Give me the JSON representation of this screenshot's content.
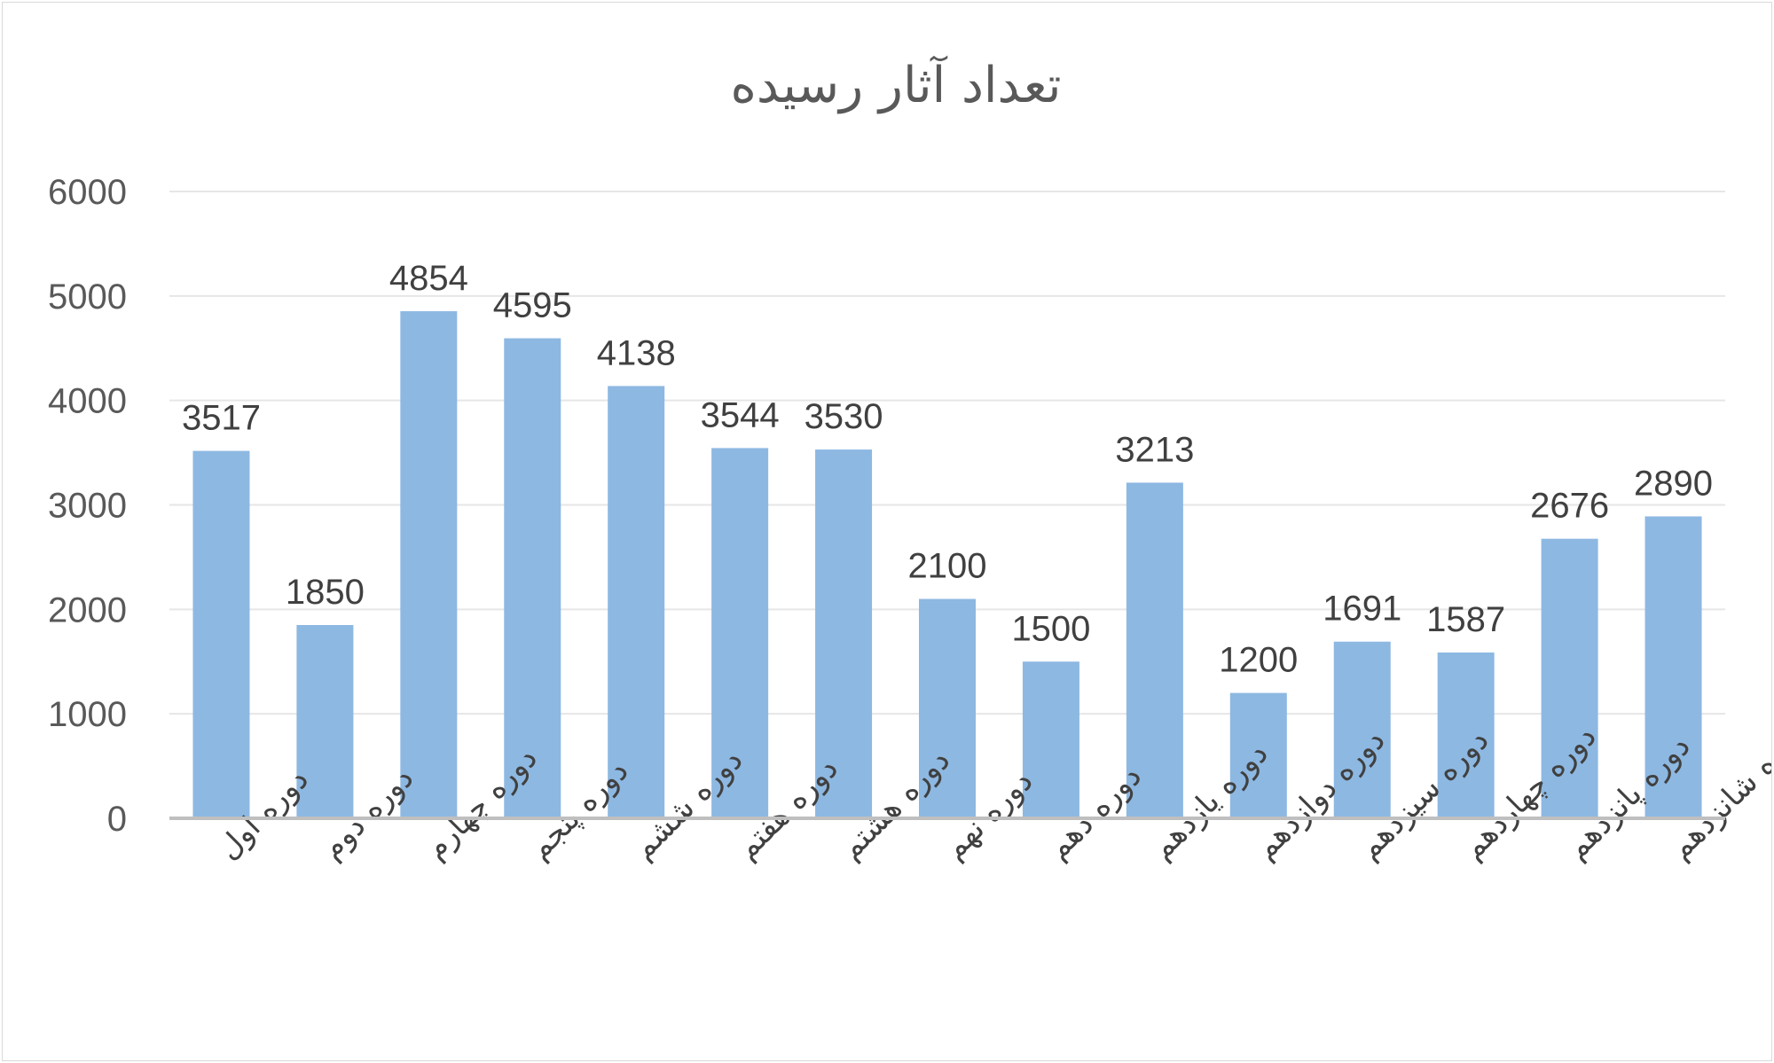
{
  "chart_data": {
    "type": "bar",
    "title": "تعداد آثار رسیده",
    "xlabel": "",
    "ylabel": "",
    "categories": [
      "دوره اول",
      "دوره دوم",
      "دوره چهارم",
      "دوره پنجم",
      "دوره ششم",
      "دوره هفتم",
      "دوره هشتم",
      "دوره نهم",
      "دوره دهم",
      "دوره یازدهم",
      "دوره دوازدهم",
      "دوره سیزدهم",
      "دوره چهاردهم",
      "دوره پانزدهم",
      "دوره شانزدهم"
    ],
    "values": [
      3517,
      1850,
      4854,
      4595,
      4138,
      3544,
      3530,
      2100,
      1500,
      3213,
      1200,
      1691,
      1587,
      2676,
      2890
    ],
    "ylim": [
      0,
      6000
    ],
    "yticks": [
      0,
      1000,
      2000,
      3000,
      4000,
      5000,
      6000
    ],
    "grid": true,
    "legend": "none",
    "bar_color": "#8db8e2",
    "data_labels": true
  }
}
